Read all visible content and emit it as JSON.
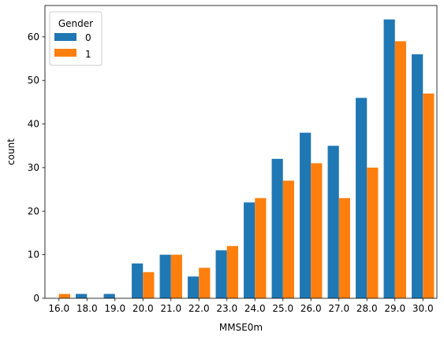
{
  "chart_data": {
    "type": "bar",
    "xlabel": "MMSE0m",
    "ylabel": "count",
    "categories": [
      "16.0",
      "18.0",
      "19.0",
      "20.0",
      "21.0",
      "22.0",
      "23.0",
      "24.0",
      "25.0",
      "26.0",
      "27.0",
      "28.0",
      "29.0",
      "30.0"
    ],
    "series": [
      {
        "name": "0",
        "color": "#1f77b4",
        "values": [
          0,
          1,
          1,
          8,
          10,
          5,
          11,
          22,
          32,
          38,
          35,
          46,
          64,
          56
        ]
      },
      {
        "name": "1",
        "color": "#ff7f0e",
        "values": [
          1,
          0,
          0,
          6,
          10,
          7,
          12,
          23,
          27,
          31,
          23,
          30,
          59,
          47
        ]
      }
    ],
    "ylim": [
      0,
      67.2
    ],
    "yticks": [
      0,
      10,
      20,
      30,
      40,
      50,
      60
    ],
    "legend": {
      "title": "Gender",
      "position": "top-left"
    },
    "grid": false
  }
}
